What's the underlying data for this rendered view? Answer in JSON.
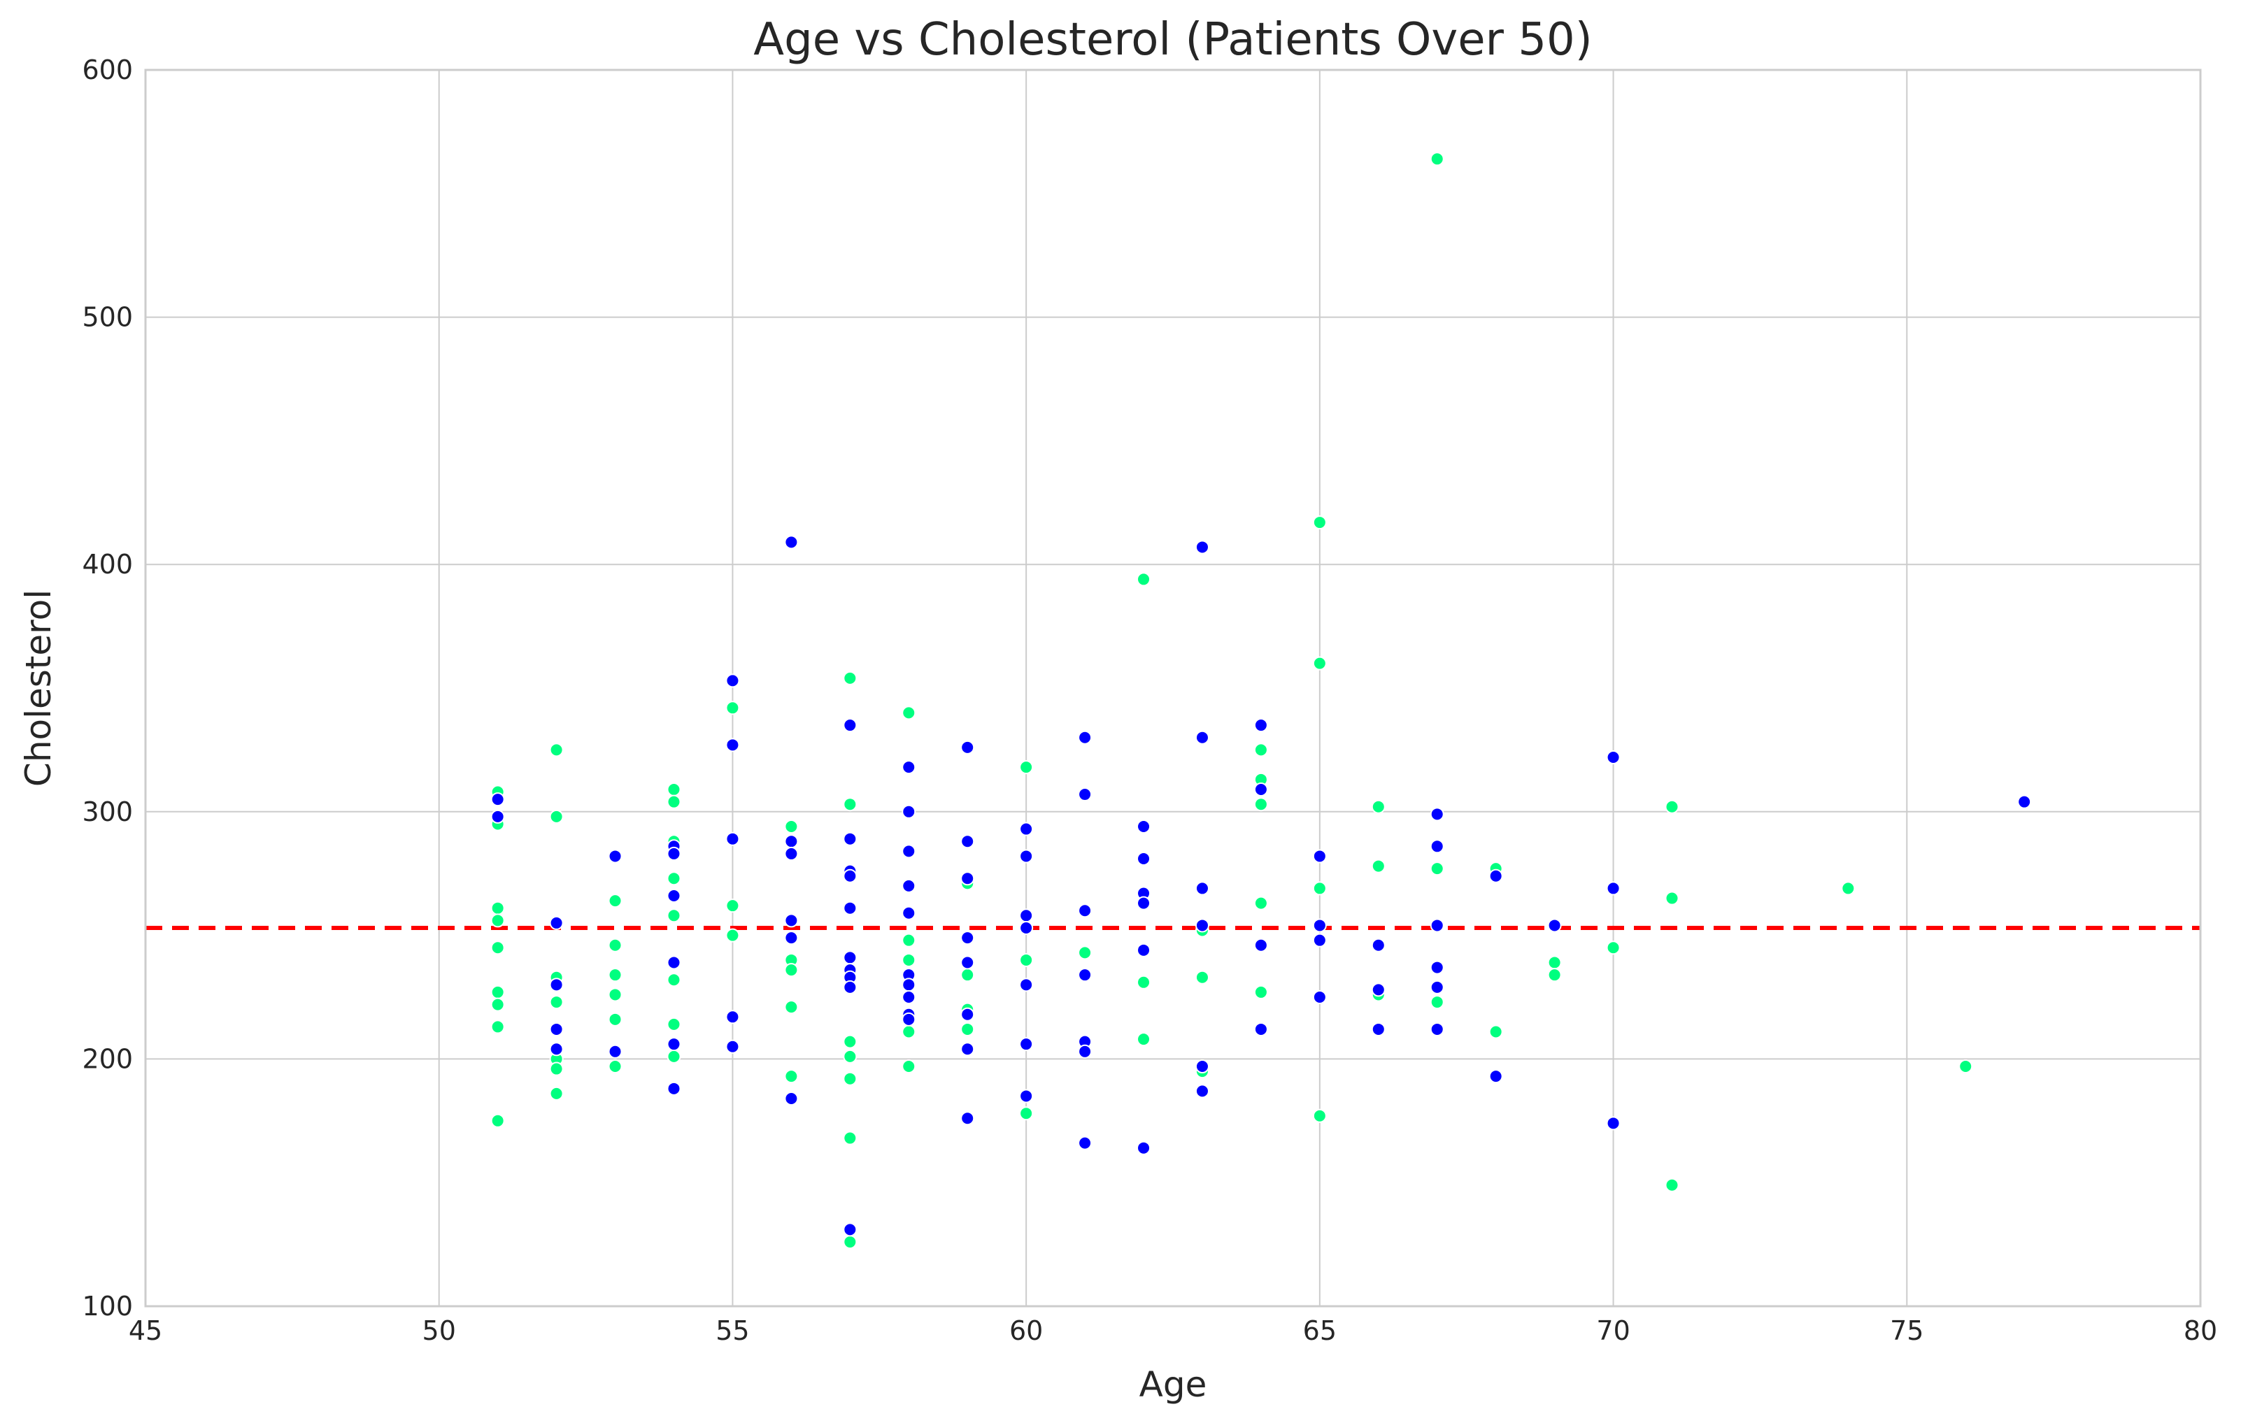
{
  "chart_data": {
    "type": "scatter",
    "title": "Age vs Cholesterol (Patients Over 50)",
    "xlabel": "Age",
    "ylabel": "Cholesterol",
    "xlim": [
      45,
      80
    ],
    "ylim": [
      100,
      600
    ],
    "xticks": [
      45,
      50,
      55,
      60,
      65,
      70,
      75,
      80
    ],
    "yticks": [
      100,
      200,
      300,
      400,
      500,
      600
    ],
    "grid": true,
    "reference_line": {
      "y": 253,
      "color": "#ff0000",
      "style": "dashed"
    },
    "series": [
      {
        "color": "#00ff7f",
        "points": [
          [
            51,
            308
          ],
          [
            51,
            295
          ],
          [
            51,
            261
          ],
          [
            51,
            256
          ],
          [
            51,
            245
          ],
          [
            51,
            227
          ],
          [
            51,
            222
          ],
          [
            51,
            213
          ],
          [
            51,
            175
          ],
          [
            52,
            325
          ],
          [
            52,
            298
          ],
          [
            52,
            233
          ],
          [
            52,
            223
          ],
          [
            52,
            200
          ],
          [
            52,
            196
          ],
          [
            52,
            186
          ],
          [
            53,
            264
          ],
          [
            53,
            246
          ],
          [
            53,
            234
          ],
          [
            53,
            226
          ],
          [
            53,
            216
          ],
          [
            53,
            197
          ],
          [
            54,
            309
          ],
          [
            54,
            304
          ],
          [
            54,
            288
          ],
          [
            54,
            273
          ],
          [
            54,
            258
          ],
          [
            54,
            232
          ],
          [
            54,
            214
          ],
          [
            54,
            201
          ],
          [
            55,
            342
          ],
          [
            55,
            262
          ],
          [
            55,
            250
          ],
          [
            56,
            294
          ],
          [
            56,
            240
          ],
          [
            56,
            236
          ],
          [
            56,
            221
          ],
          [
            56,
            193
          ],
          [
            57,
            354
          ],
          [
            57,
            303
          ],
          [
            57,
            207
          ],
          [
            57,
            201
          ],
          [
            57,
            192
          ],
          [
            57,
            168
          ],
          [
            57,
            126
          ],
          [
            58,
            340
          ],
          [
            58,
            248
          ],
          [
            58,
            240
          ],
          [
            58,
            211
          ],
          [
            58,
            197
          ],
          [
            59,
            271
          ],
          [
            59,
            234
          ],
          [
            59,
            220
          ],
          [
            59,
            212
          ],
          [
            60,
            318
          ],
          [
            60,
            240
          ],
          [
            60,
            178
          ],
          [
            61,
            243
          ],
          [
            62,
            394
          ],
          [
            62,
            231
          ],
          [
            62,
            208
          ],
          [
            63,
            252
          ],
          [
            63,
            233
          ],
          [
            63,
            195
          ],
          [
            64,
            325
          ],
          [
            64,
            313
          ],
          [
            64,
            303
          ],
          [
            64,
            263
          ],
          [
            64,
            227
          ],
          [
            65,
            417
          ],
          [
            65,
            360
          ],
          [
            65,
            269
          ],
          [
            65,
            177
          ],
          [
            66,
            302
          ],
          [
            66,
            278
          ],
          [
            66,
            226
          ],
          [
            67,
            564
          ],
          [
            67,
            277
          ],
          [
            67,
            223
          ],
          [
            68,
            277
          ],
          [
            68,
            211
          ],
          [
            69,
            239
          ],
          [
            69,
            234
          ],
          [
            70,
            245
          ],
          [
            71,
            302
          ],
          [
            71,
            265
          ],
          [
            71,
            149
          ],
          [
            74,
            269
          ],
          [
            76,
            197
          ]
        ]
      },
      {
        "color": "#0000ff",
        "points": [
          [
            51,
            305
          ],
          [
            51,
            298
          ],
          [
            52,
            255
          ],
          [
            52,
            230
          ],
          [
            52,
            212
          ],
          [
            52,
            204
          ],
          [
            53,
            282
          ],
          [
            53,
            203
          ],
          [
            54,
            286
          ],
          [
            54,
            283
          ],
          [
            54,
            266
          ],
          [
            54,
            239
          ],
          [
            54,
            206
          ],
          [
            54,
            188
          ],
          [
            55,
            353
          ],
          [
            55,
            327
          ],
          [
            55,
            289
          ],
          [
            55,
            217
          ],
          [
            55,
            205
          ],
          [
            56,
            409
          ],
          [
            56,
            288
          ],
          [
            56,
            283
          ],
          [
            56,
            256
          ],
          [
            56,
            249
          ],
          [
            56,
            184
          ],
          [
            57,
            335
          ],
          [
            57,
            289
          ],
          [
            57,
            276
          ],
          [
            57,
            274
          ],
          [
            57,
            261
          ],
          [
            57,
            241
          ],
          [
            57,
            236
          ],
          [
            57,
            233
          ],
          [
            57,
            229
          ],
          [
            57,
            131
          ],
          [
            58,
            318
          ],
          [
            58,
            300
          ],
          [
            58,
            284
          ],
          [
            58,
            270
          ],
          [
            58,
            259
          ],
          [
            58,
            234
          ],
          [
            58,
            230
          ],
          [
            58,
            225
          ],
          [
            58,
            218
          ],
          [
            58,
            216
          ],
          [
            59,
            326
          ],
          [
            59,
            288
          ],
          [
            59,
            273
          ],
          [
            59,
            249
          ],
          [
            59,
            239
          ],
          [
            59,
            218
          ],
          [
            59,
            204
          ],
          [
            59,
            176
          ],
          [
            60,
            293
          ],
          [
            60,
            282
          ],
          [
            60,
            258
          ],
          [
            60,
            253
          ],
          [
            60,
            230
          ],
          [
            60,
            206
          ],
          [
            60,
            185
          ],
          [
            61,
            330
          ],
          [
            61,
            307
          ],
          [
            61,
            260
          ],
          [
            61,
            234
          ],
          [
            61,
            207
          ],
          [
            61,
            203
          ],
          [
            61,
            166
          ],
          [
            62,
            294
          ],
          [
            62,
            281
          ],
          [
            62,
            267
          ],
          [
            62,
            263
          ],
          [
            62,
            244
          ],
          [
            62,
            164
          ],
          [
            63,
            407
          ],
          [
            63,
            330
          ],
          [
            63,
            269
          ],
          [
            63,
            254
          ],
          [
            63,
            197
          ],
          [
            63,
            187
          ],
          [
            64,
            335
          ],
          [
            64,
            309
          ],
          [
            64,
            246
          ],
          [
            64,
            212
          ],
          [
            65,
            282
          ],
          [
            65,
            254
          ],
          [
            65,
            248
          ],
          [
            65,
            225
          ],
          [
            66,
            246
          ],
          [
            66,
            228
          ],
          [
            66,
            212
          ],
          [
            67,
            299
          ],
          [
            67,
            286
          ],
          [
            67,
            254
          ],
          [
            67,
            237
          ],
          [
            67,
            229
          ],
          [
            67,
            212
          ],
          [
            68,
            274
          ],
          [
            68,
            193
          ],
          [
            69,
            254
          ],
          [
            70,
            322
          ],
          [
            70,
            269
          ],
          [
            70,
            174
          ],
          [
            77,
            304
          ]
        ]
      }
    ]
  }
}
